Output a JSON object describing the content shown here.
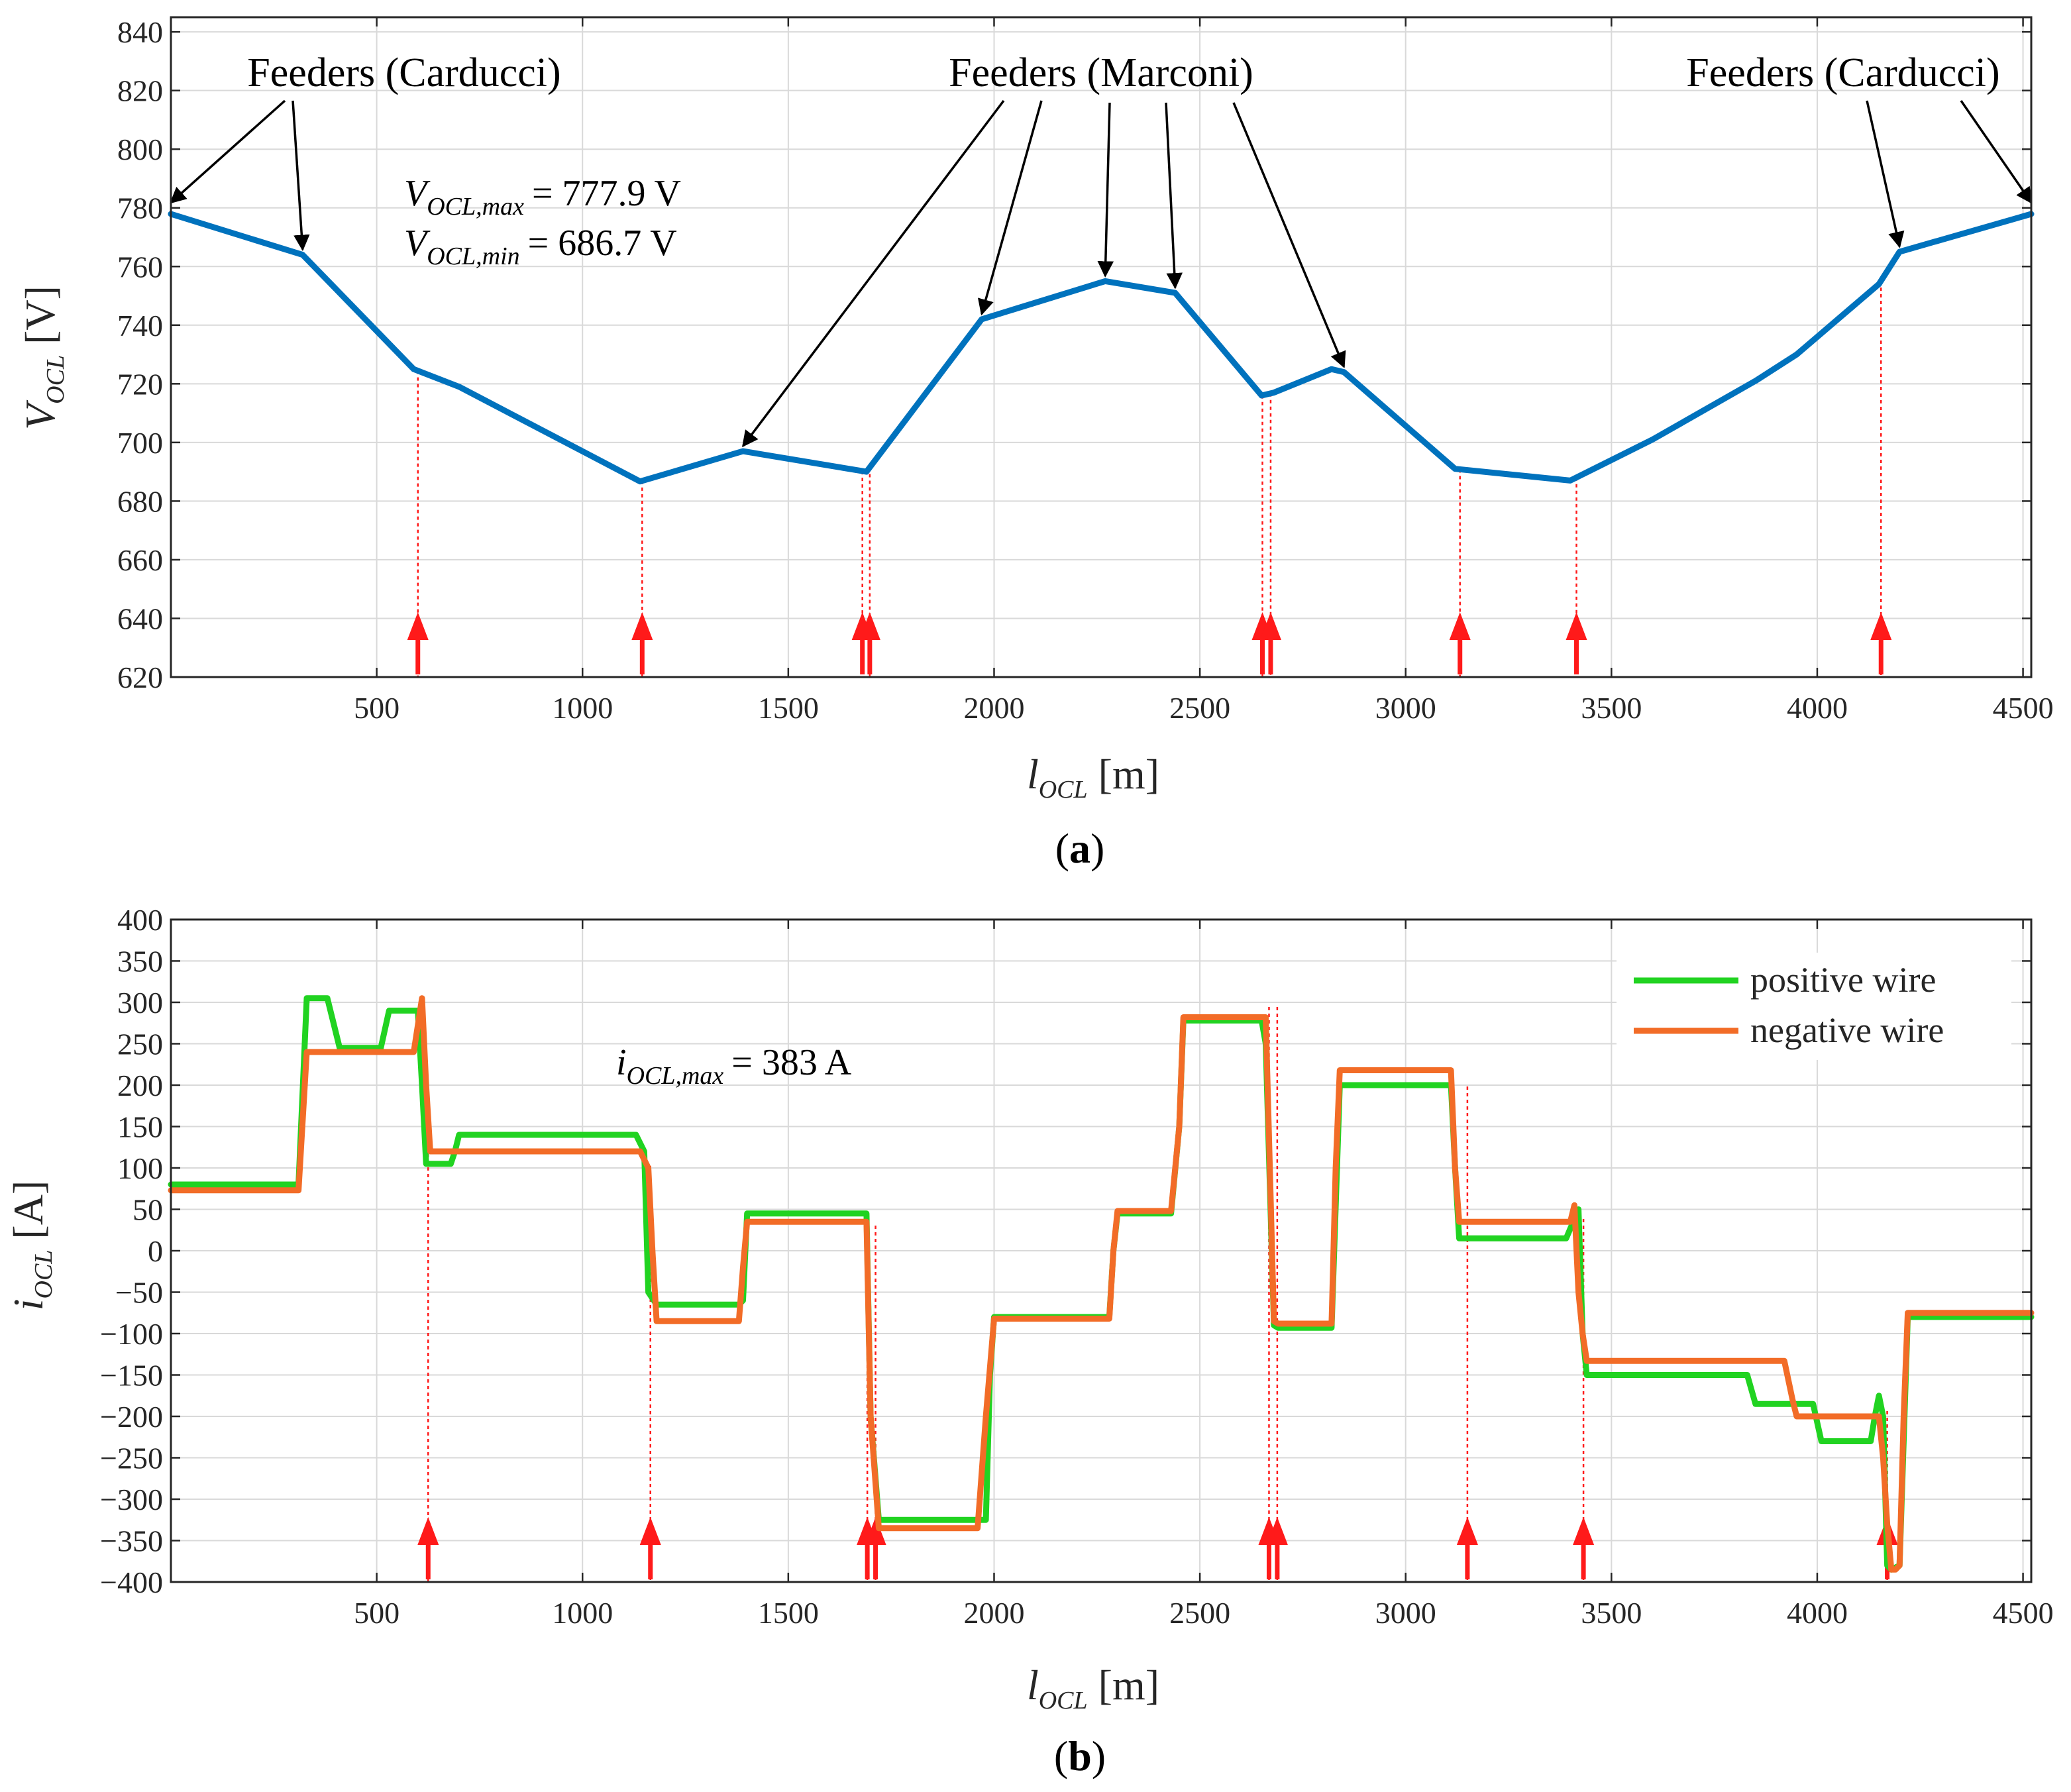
{
  "chart_data": [
    {
      "type": "line",
      "caption": "(a)",
      "caption_letter": "a",
      "xlabel_sym": "l",
      "xlabel_sub": "OCL",
      "xlabel_unit": "[m]",
      "ylabel_sym": "V",
      "ylabel_sub": "OCL",
      "ylabel_unit": "[V]",
      "xlim": [
        0,
        4520
      ],
      "ylim": [
        620,
        845
      ],
      "xticks": [
        500,
        1000,
        1500,
        2000,
        2500,
        3000,
        3500,
        4000,
        4500
      ],
      "yticks": [
        620,
        640,
        660,
        680,
        700,
        720,
        740,
        760,
        780,
        800,
        820,
        840
      ],
      "color": "#0072BD",
      "series": [
        {
          "name": "V_OCL",
          "x": [
            0,
            320,
            590,
            700,
            1140,
            1390,
            1690,
            1970,
            2270,
            2440,
            2650,
            2680,
            2820,
            2850,
            3120,
            3400,
            3600,
            3850,
            3950,
            4150,
            4200,
            4520
          ],
          "y": [
            777.9,
            764,
            725,
            719,
            686.7,
            697,
            690,
            742,
            755,
            751,
            716,
            717,
            725,
            724,
            691,
            687,
            701,
            721,
            730,
            754,
            765,
            777.9
          ]
        }
      ],
      "drop_lines_x": [
        600,
        1145,
        1680,
        1698,
        2652,
        2672,
        3132,
        3415,
        4155
      ],
      "annotations": {
        "feeders_left": {
          "text": "Feeders (Carducci)",
          "x": 510,
          "y": 830,
          "targets": [
            [
              0,
              780
            ],
            [
              320,
              764
            ]
          ]
        },
        "feeders_mid": {
          "text": "Feeders (Marconi)",
          "x": 2250,
          "y": 830,
          "targets": [
            [
              1390,
              697
            ],
            [
              1970,
              742
            ],
            [
              2270,
              755
            ],
            [
              2440,
              751
            ],
            [
              2850,
              724
            ]
          ]
        },
        "feeders_right": {
          "text": "Feeders (Carducci)",
          "x": 4065,
          "y": 830,
          "targets": [
            [
              4200,
              765
            ],
            [
              4520,
              780
            ]
          ]
        },
        "vmax_sym": "V",
        "vmax_sub": "OCL,max",
        "vmax_val": "= 777.9 V",
        "vmin_sym": "V",
        "vmin_sub": "OCL,min",
        "vmin_val": "= 686.7 V"
      }
    },
    {
      "type": "line",
      "caption": "(b)",
      "caption_letter": "b",
      "xlabel_sym": "l",
      "xlabel_sub": "OCL",
      "xlabel_unit": "[m]",
      "ylabel_sym": "i",
      "ylabel_sub": "OCL",
      "ylabel_unit": "[A]",
      "xlim": [
        0,
        4520
      ],
      "ylim": [
        -400,
        400
      ],
      "xticks": [
        500,
        1000,
        1500,
        2000,
        2500,
        3000,
        3500,
        4000,
        4500
      ],
      "yticks": [
        -400,
        -350,
        -300,
        -250,
        -200,
        -150,
        -100,
        -50,
        0,
        50,
        100,
        150,
        200,
        250,
        300,
        350,
        400
      ],
      "series": [
        {
          "name": "positive wire",
          "color": "#21D321",
          "x": [
            0,
            310,
            330,
            380,
            410,
            510,
            530,
            570,
            600,
            610,
            620,
            680,
            690,
            700,
            720,
            800,
            1000,
            1130,
            1150,
            1160,
            1180,
            1380,
            1390,
            1400,
            1690,
            1700,
            1720,
            1980,
            1990,
            2000,
            2280,
            2290,
            2300,
            2430,
            2450,
            2460,
            2650,
            2660,
            2670,
            2680,
            2690,
            2820,
            2840,
            3080,
            3110,
            3120,
            3130,
            3390,
            3420,
            3430,
            3440,
            3830,
            3850,
            3880,
            3990,
            4010,
            4030,
            4130,
            4140,
            4150,
            4160,
            4170,
            4180,
            4200,
            4220,
            4520
          ],
          "y": [
            80,
            80,
            305,
            305,
            245,
            245,
            290,
            290,
            290,
            200,
            105,
            105,
            120,
            140,
            140,
            140,
            140,
            140,
            120,
            -50,
            -65,
            -65,
            -60,
            45,
            45,
            -200,
            -325,
            -325,
            -150,
            -80,
            -80,
            0,
            45,
            45,
            150,
            278,
            278,
            250,
            80,
            -90,
            -93,
            -93,
            200,
            200,
            200,
            100,
            15,
            15,
            50,
            -100,
            -150,
            -150,
            -185,
            -185,
            -185,
            -230,
            -230,
            -230,
            -200,
            -175,
            -200,
            -380,
            -385,
            -380,
            -80,
            -80
          ]
        },
        {
          "name": "negative wire",
          "color": "#F26C27",
          "x": [
            0,
            310,
            330,
            590,
            610,
            620,
            630,
            720,
            840,
            1000,
            1140,
            1160,
            1170,
            1180,
            1380,
            1390,
            1400,
            1690,
            1700,
            1720,
            1960,
            1980,
            2000,
            2280,
            2290,
            2300,
            2430,
            2450,
            2460,
            2660,
            2670,
            2680,
            2690,
            2820,
            2830,
            2840,
            3100,
            3110,
            3120,
            3130,
            3400,
            3410,
            3420,
            3430,
            3440,
            3680,
            3920,
            3940,
            3950,
            4150,
            4160,
            4170,
            4180,
            4190,
            4200,
            4210,
            4220,
            4520
          ],
          "y": [
            73,
            73,
            240,
            240,
            305,
            200,
            120,
            120,
            120,
            120,
            120,
            100,
            0,
            -85,
            -85,
            -20,
            35,
            35,
            -200,
            -335,
            -335,
            -200,
            -82,
            -82,
            0,
            48,
            48,
            150,
            282,
            282,
            100,
            -85,
            -88,
            -88,
            100,
            218,
            218,
            218,
            100,
            35,
            35,
            55,
            -50,
            -100,
            -133,
            -133,
            -133,
            -180,
            -200,
            -200,
            -250,
            -330,
            -385,
            -385,
            -380,
            -200,
            -75,
            -75
          ]
        }
      ],
      "drop_lines_x": [
        625,
        1165,
        1692,
        1712,
        2668,
        2688,
        3150,
        3432,
        4170
      ],
      "legend": {
        "location": "top-right",
        "entries": [
          "positive wire",
          "negative wire"
        ]
      },
      "annotations": {
        "imax_sym": "i",
        "imax_sub": "OCL,max",
        "imax_val": "= 383 A"
      }
    }
  ]
}
